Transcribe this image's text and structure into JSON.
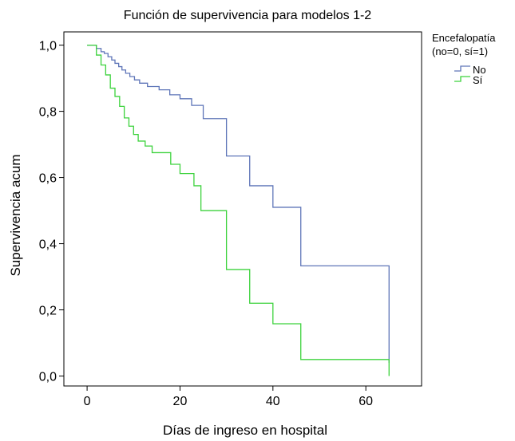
{
  "chart_data": {
    "type": "line",
    "title": "Función de supervivencia para modelos 1-2",
    "xlabel": "Días de ingreso en hospital",
    "ylabel": "Supervivencia acum",
    "xlim": [
      -5,
      72
    ],
    "ylim": [
      -0.03,
      1.04
    ],
    "x_ticks": [
      0,
      20,
      40,
      60
    ],
    "x_tick_labels": [
      "0",
      "20",
      "40",
      "60"
    ],
    "y_ticks": [
      0.0,
      0.2,
      0.4,
      0.6,
      0.8,
      1.0
    ],
    "y_tick_labels": [
      "0,0",
      "0,2",
      "0,4",
      "0,6",
      "0,8",
      "1,0"
    ],
    "grid": false,
    "legend": {
      "placement": "top-right-outside",
      "title_line1": "Encefalopatía",
      "title_line2": "(no=0, sí=1)"
    },
    "series": [
      {
        "name": "No",
        "color": "#5e75b8",
        "x": [
          0,
          2,
          3,
          3.7,
          4.5,
          5.3,
          6,
          6.8,
          7.5,
          8.3,
          9.2,
          10.2,
          11.3,
          13,
          15.5,
          17.8,
          20,
          22.5,
          25,
          30,
          35,
          40,
          46,
          65,
          65
        ],
        "y": [
          1.0,
          0.99,
          0.98,
          0.975,
          0.965,
          0.955,
          0.945,
          0.935,
          0.925,
          0.915,
          0.905,
          0.895,
          0.885,
          0.875,
          0.865,
          0.85,
          0.838,
          0.818,
          0.778,
          0.665,
          0.575,
          0.51,
          0.333,
          0.333,
          0.04
        ]
      },
      {
        "name": "Sí",
        "color": "#3cd23c",
        "x": [
          0,
          2,
          3,
          4,
          5,
          6,
          7,
          8,
          9,
          10,
          11,
          12.5,
          14,
          18,
          20,
          23,
          24.5,
          30,
          35,
          40,
          46,
          65,
          65
        ],
        "y": [
          1.0,
          0.97,
          0.94,
          0.91,
          0.87,
          0.845,
          0.815,
          0.78,
          0.755,
          0.73,
          0.71,
          0.695,
          0.675,
          0.64,
          0.612,
          0.575,
          0.5,
          0.322,
          0.22,
          0.158,
          0.05,
          0.05,
          0.0
        ]
      }
    ]
  }
}
